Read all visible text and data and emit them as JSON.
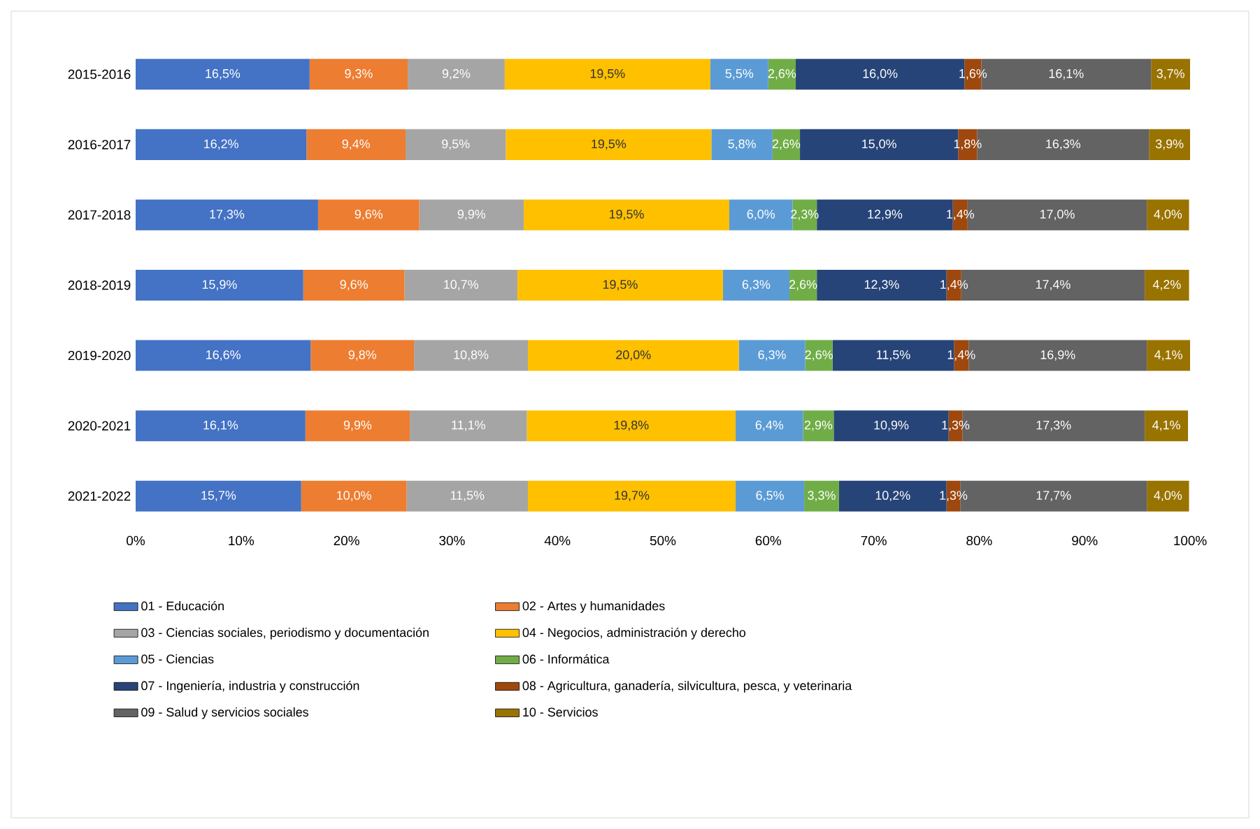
{
  "chart_data": {
    "type": "bar",
    "orientation": "horizontal",
    "stacked": true,
    "legend": "bottom",
    "categories": [
      "2015-2016",
      "2016-2017",
      "2017-2018",
      "2018-2019",
      "2019-2020",
      "2020-2021",
      "2021-2022"
    ],
    "xlim": [
      0,
      100
    ],
    "xticks": [
      {
        "value": 0,
        "label": "0%"
      },
      {
        "value": 10,
        "label": "10%"
      },
      {
        "value": 20,
        "label": "20%"
      },
      {
        "value": 30,
        "label": "30%"
      },
      {
        "value": 40,
        "label": "40%"
      },
      {
        "value": 50,
        "label": "50%"
      },
      {
        "value": 60,
        "label": "60%"
      },
      {
        "value": 70,
        "label": "70%"
      },
      {
        "value": 80,
        "label": "80%"
      },
      {
        "value": 90,
        "label": "90%"
      },
      {
        "value": 100,
        "label": "100%"
      }
    ],
    "series": [
      {
        "name": "01 - Educación",
        "color": "#4472c4",
        "values": [
          16.5,
          16.2,
          17.3,
          15.9,
          16.6,
          16.1,
          15.7
        ],
        "value_labels": [
          "16,5%",
          "16,2%",
          "17,3%",
          "15,9%",
          "16,6%",
          "16,1%",
          "15,7%"
        ]
      },
      {
        "name": "02 - Artes y humanidades",
        "color": "#ed7d31",
        "values": [
          9.3,
          9.4,
          9.6,
          9.6,
          9.8,
          9.9,
          10.0
        ],
        "value_labels": [
          "9,3%",
          "9,4%",
          "9,6%",
          "9,6%",
          "9,8%",
          "9,9%",
          "10,0%"
        ]
      },
      {
        "name": "03 - Ciencias sociales, periodismo y documentación",
        "color": "#a5a5a5",
        "values": [
          9.2,
          9.5,
          9.9,
          10.7,
          10.8,
          11.1,
          11.5
        ],
        "value_labels": [
          "9,2%",
          "9,5%",
          "9,9%",
          "10,7%",
          "10,8%",
          "11,1%",
          "11,5%"
        ]
      },
      {
        "name": "04 - Negocios, administración y derecho",
        "color": "#ffc000",
        "values": [
          19.5,
          19.5,
          19.5,
          19.5,
          20.0,
          19.8,
          19.7
        ],
        "value_labels": [
          "19,5%",
          "19,5%",
          "19,5%",
          "19,5%",
          "20,0%",
          "19,8%",
          "19,7%"
        ]
      },
      {
        "name": "05 - Ciencias",
        "color": "#5b9bd5",
        "values": [
          5.5,
          5.8,
          6.0,
          6.3,
          6.3,
          6.4,
          6.5
        ],
        "value_labels": [
          "5,5%",
          "5,8%",
          "6,0%",
          "6,3%",
          "6,3%",
          "6,4%",
          "6,5%"
        ]
      },
      {
        "name": "06 - Informática",
        "color": "#70ad47",
        "values": [
          2.6,
          2.6,
          2.3,
          2.6,
          2.6,
          2.9,
          3.3
        ],
        "value_labels": [
          "2,6%",
          "2,6%",
          "2,3%",
          "2,6%",
          "2,6%",
          "2,9%",
          "3,3%"
        ]
      },
      {
        "name": "07 - Ingeniería, industria y construcción",
        "color": "#264478",
        "values": [
          16.0,
          15.0,
          12.9,
          12.3,
          11.5,
          10.9,
          10.2
        ],
        "value_labels": [
          "16,0%",
          "15,0%",
          "12,9%",
          "12,3%",
          "11,5%",
          "10,9%",
          "10,2%"
        ]
      },
      {
        "name": "08 - Agricultura, ganadería, silvicultura, pesca, y veterinaria",
        "color": "#9e480e",
        "values": [
          1.6,
          1.8,
          1.4,
          1.4,
          1.4,
          1.3,
          1.3
        ],
        "value_labels": [
          "1,6%",
          "1,8%",
          "1,4%",
          "1,4%",
          "1,4%",
          "1,3%",
          "1,3%"
        ]
      },
      {
        "name": "09 - Salud y servicios sociales",
        "color": "#636363",
        "values": [
          16.1,
          16.3,
          17.0,
          17.4,
          16.9,
          17.3,
          17.7
        ],
        "value_labels": [
          "16,1%",
          "16,3%",
          "17,0%",
          "17,4%",
          "16,9%",
          "17,3%",
          "17,7%"
        ]
      },
      {
        "name": "10 - Servicios",
        "color": "#997300",
        "values": [
          3.7,
          3.9,
          4.0,
          4.2,
          4.1,
          4.1,
          4.0
        ],
        "value_labels": [
          "3,7%",
          "3,9%",
          "4,0%",
          "4,2%",
          "4,1%",
          "4,1%",
          "4,0%"
        ]
      }
    ]
  }
}
